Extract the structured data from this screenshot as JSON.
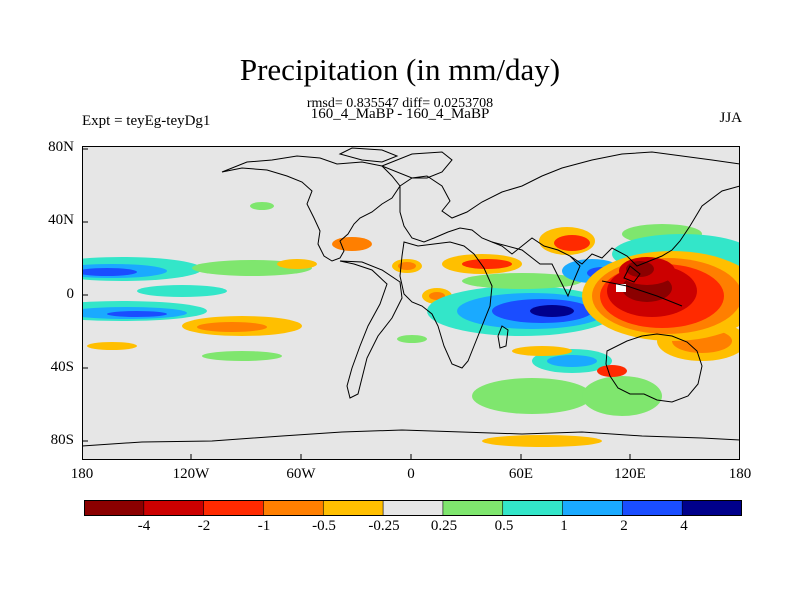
{
  "title": "Precipitation (in mm/day)",
  "stats": "rmsd= 0.835547 diff= 0.0253708",
  "subtitle": "160_4_MaBP - 160_4_MaBP",
  "experiment": "Expt = teyEg-teyDg1",
  "season": "JJA",
  "axes": {
    "y_ticks": [
      "80N",
      "40N",
      "0",
      "40S",
      "80S"
    ],
    "x_ticks": [
      "180",
      "120W",
      "60W",
      "0",
      "60E",
      "120E",
      "180"
    ]
  },
  "colorbar": {
    "labels": [
      "-4",
      "-2",
      "-1",
      "-0.5",
      "-0.25",
      "0.25",
      "0.5",
      "1",
      "2",
      "4"
    ],
    "colors": [
      "#8b0000",
      "#cc0000",
      "#ff2a00",
      "#ff7f00",
      "#ffbf00",
      "#e6e6e6",
      "#7fe66e",
      "#33e6c9",
      "#1aaaff",
      "#1a4dff",
      "#00008b"
    ]
  }
}
